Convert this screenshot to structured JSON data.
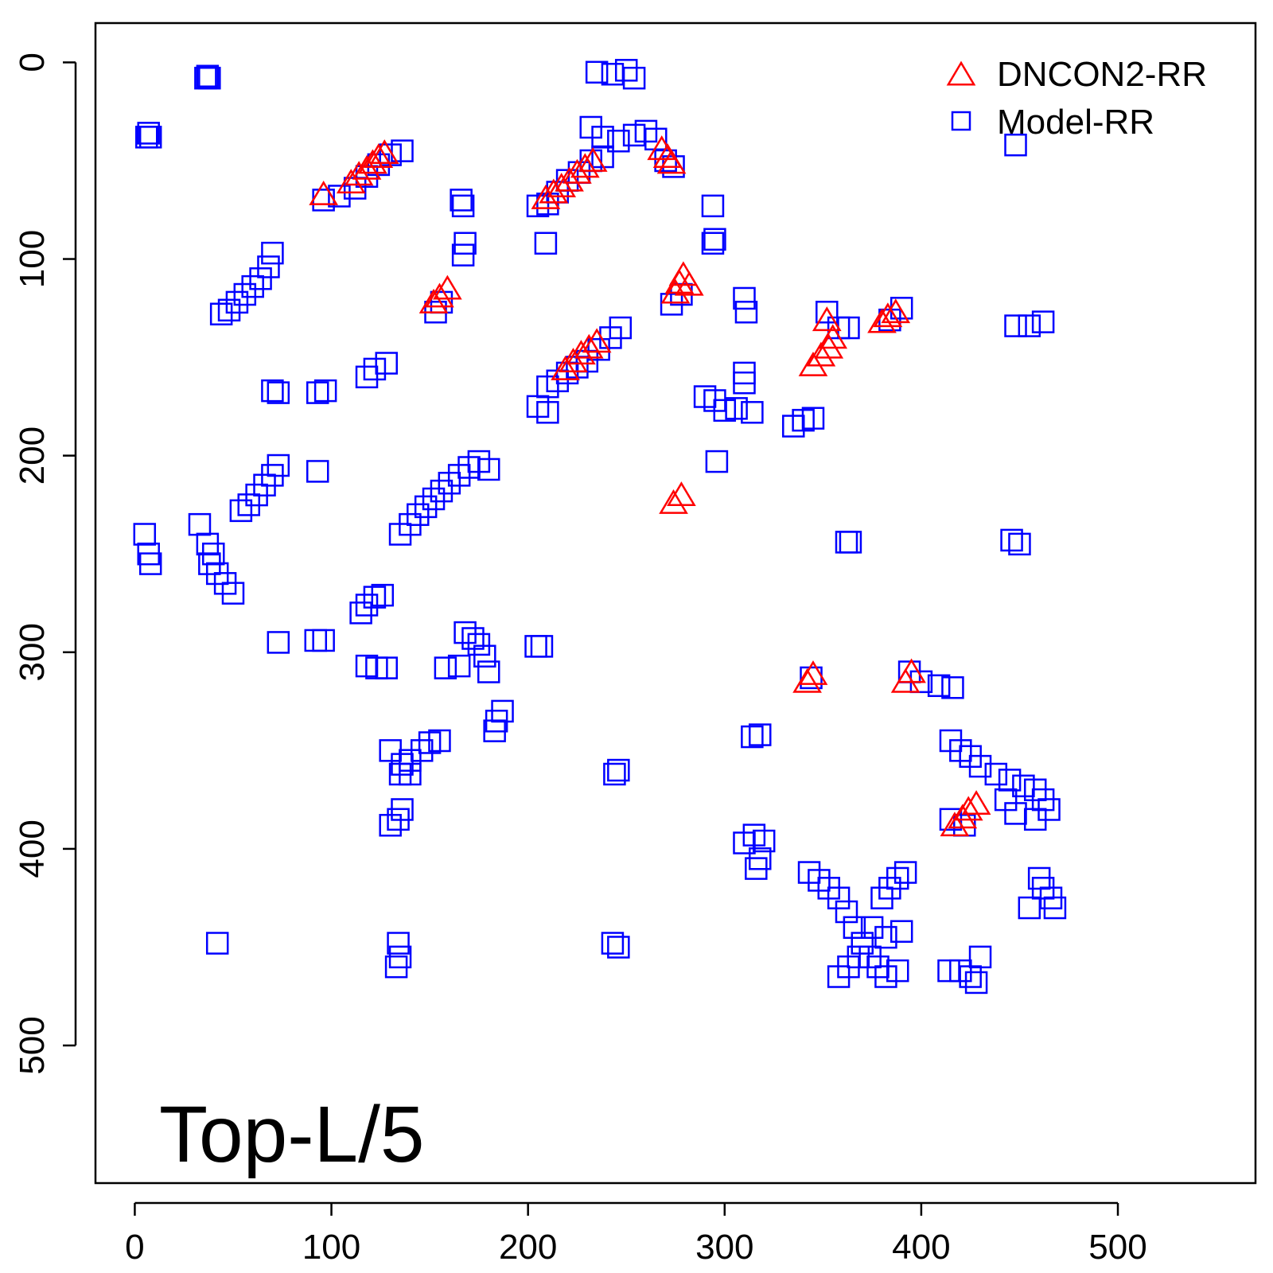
{
  "chart_data": {
    "type": "scatter",
    "title": "",
    "xlabel": "",
    "ylabel": "",
    "annotation": "Top-L/5",
    "xlim": [
      -20,
      570
    ],
    "ylim": [
      570,
      -20
    ],
    "y_reversed": true,
    "x_ticks": [
      0,
      100,
      200,
      300,
      400,
      500
    ],
    "y_ticks": [
      0,
      100,
      200,
      300,
      400,
      500
    ],
    "legend_position": "top-right",
    "grid": false,
    "series": [
      {
        "name": "DNCON2-RR",
        "marker": "open-triangle",
        "color": "#ff0000",
        "points": [
          [
            96,
            68
          ],
          [
            110,
            62
          ],
          [
            114,
            58
          ],
          [
            118,
            55
          ],
          [
            121,
            52
          ],
          [
            124,
            49
          ],
          [
            127,
            47
          ],
          [
            209,
            70
          ],
          [
            213,
            67
          ],
          [
            217,
            64
          ],
          [
            221,
            61
          ],
          [
            225,
            57
          ],
          [
            229,
            54
          ],
          [
            233,
            51
          ],
          [
            268,
            45
          ],
          [
            271,
            49
          ],
          [
            273,
            52
          ],
          [
            152,
            123
          ],
          [
            155,
            120
          ],
          [
            159,
            116
          ],
          [
            275,
            118
          ],
          [
            277,
            113
          ],
          [
            279,
            109
          ],
          [
            282,
            114
          ],
          [
            345,
            155
          ],
          [
            349,
            150
          ],
          [
            353,
            146
          ],
          [
            355,
            141
          ],
          [
            352,
            132
          ],
          [
            380,
            133
          ],
          [
            383,
            130
          ],
          [
            387,
            128
          ],
          [
            219,
            157
          ],
          [
            223,
            153
          ],
          [
            227,
            149
          ],
          [
            231,
            146
          ],
          [
            235,
            143
          ],
          [
            274,
            225
          ],
          [
            278,
            221
          ],
          [
            342,
            316
          ],
          [
            345,
            312
          ],
          [
            392,
            316
          ],
          [
            395,
            311
          ],
          [
            417,
            389
          ],
          [
            421,
            385
          ],
          [
            424,
            381
          ],
          [
            428,
            378
          ]
        ]
      },
      {
        "name": "Model-RR",
        "marker": "open-square",
        "color": "#0000ff",
        "points": [
          [
            36,
            8
          ],
          [
            38,
            8
          ],
          [
            37,
            7
          ],
          [
            6,
            38
          ],
          [
            8,
            38
          ],
          [
            7,
            36
          ],
          [
            96,
            70
          ],
          [
            104,
            68
          ],
          [
            112,
            64
          ],
          [
            118,
            58
          ],
          [
            124,
            52
          ],
          [
            130,
            47
          ],
          [
            136,
            45
          ],
          [
            235,
            5
          ],
          [
            243,
            6
          ],
          [
            250,
            4
          ],
          [
            254,
            8
          ],
          [
            232,
            33
          ],
          [
            238,
            38
          ],
          [
            246,
            40
          ],
          [
            254,
            37
          ],
          [
            260,
            35
          ],
          [
            265,
            39
          ],
          [
            205,
            73
          ],
          [
            210,
            72
          ],
          [
            215,
            66
          ],
          [
            220,
            60
          ],
          [
            226,
            56
          ],
          [
            232,
            50
          ],
          [
            238,
            48
          ],
          [
            270,
            50
          ],
          [
            274,
            53
          ],
          [
            166,
            70
          ],
          [
            167,
            73
          ],
          [
            168,
            92
          ],
          [
            167,
            98
          ],
          [
            209,
            92
          ],
          [
            294,
            73
          ],
          [
            294,
            92
          ],
          [
            295,
            90
          ],
          [
            44,
            128
          ],
          [
            48,
            126
          ],
          [
            52,
            122
          ],
          [
            56,
            118
          ],
          [
            60,
            114
          ],
          [
            64,
            110
          ],
          [
            68,
            104
          ],
          [
            70,
            97
          ],
          [
            153,
            127
          ],
          [
            156,
            122
          ],
          [
            273,
            123
          ],
          [
            278,
            118
          ],
          [
            310,
            120
          ],
          [
            311,
            127
          ],
          [
            352,
            127
          ],
          [
            358,
            135
          ],
          [
            363,
            135
          ],
          [
            384,
            131
          ],
          [
            390,
            125
          ],
          [
            448,
            134
          ],
          [
            455,
            134
          ],
          [
            462,
            132
          ],
          [
            448,
            42
          ],
          [
            118,
            160
          ],
          [
            122,
            156
          ],
          [
            128,
            153
          ],
          [
            70,
            167
          ],
          [
            73,
            168
          ],
          [
            93,
            168
          ],
          [
            97,
            167
          ],
          [
            210,
            165
          ],
          [
            215,
            162
          ],
          [
            220,
            158
          ],
          [
            225,
            155
          ],
          [
            230,
            152
          ],
          [
            236,
            146
          ],
          [
            242,
            140
          ],
          [
            247,
            135
          ],
          [
            205,
            175
          ],
          [
            210,
            178
          ],
          [
            290,
            170
          ],
          [
            295,
            172
          ],
          [
            300,
            177
          ],
          [
            306,
            176
          ],
          [
            310,
            158
          ],
          [
            310,
            163
          ],
          [
            314,
            178
          ],
          [
            335,
            185
          ],
          [
            340,
            182
          ],
          [
            345,
            181
          ],
          [
            93,
            208
          ],
          [
            73,
            205
          ],
          [
            70,
            210
          ],
          [
            66,
            215
          ],
          [
            62,
            220
          ],
          [
            58,
            225
          ],
          [
            54,
            228
          ],
          [
            135,
            240
          ],
          [
            140,
            235
          ],
          [
            144,
            230
          ],
          [
            148,
            226
          ],
          [
            152,
            222
          ],
          [
            156,
            218
          ],
          [
            160,
            214
          ],
          [
            165,
            210
          ],
          [
            170,
            206
          ],
          [
            175,
            203
          ],
          [
            180,
            207
          ],
          [
            296,
            203
          ],
          [
            5,
            240
          ],
          [
            7,
            250
          ],
          [
            8,
            255
          ],
          [
            33,
            235
          ],
          [
            37,
            245
          ],
          [
            40,
            250
          ],
          [
            42,
            260
          ],
          [
            46,
            265
          ],
          [
            50,
            270
          ],
          [
            38,
            255
          ],
          [
            362,
            244
          ],
          [
            364,
            244
          ],
          [
            446,
            243
          ],
          [
            450,
            245
          ],
          [
            115,
            280
          ],
          [
            118,
            276
          ],
          [
            122,
            272
          ],
          [
            126,
            271
          ],
          [
            73,
            295
          ],
          [
            92,
            294
          ],
          [
            96,
            294
          ],
          [
            168,
            290
          ],
          [
            172,
            293
          ],
          [
            175,
            296
          ],
          [
            178,
            302
          ],
          [
            180,
            310
          ],
          [
            165,
            307
          ],
          [
            158,
            308
          ],
          [
            204,
            297
          ],
          [
            207,
            297
          ],
          [
            118,
            307
          ],
          [
            123,
            308
          ],
          [
            128,
            308
          ],
          [
            184,
            335
          ],
          [
            187,
            330
          ],
          [
            183,
            340
          ],
          [
            344,
            313
          ],
          [
            394,
            310
          ],
          [
            400,
            315
          ],
          [
            409,
            317
          ],
          [
            416,
            318
          ],
          [
            130,
            350
          ],
          [
            136,
            357
          ],
          [
            140,
            355
          ],
          [
            146,
            350
          ],
          [
            150,
            346
          ],
          [
            155,
            345
          ],
          [
            135,
            362
          ],
          [
            140,
            362
          ],
          [
            314,
            343
          ],
          [
            318,
            342
          ],
          [
            244,
            362
          ],
          [
            246,
            360
          ],
          [
            415,
            345
          ],
          [
            420,
            350
          ],
          [
            425,
            353
          ],
          [
            430,
            358
          ],
          [
            438,
            362
          ],
          [
            445,
            365
          ],
          [
            452,
            368
          ],
          [
            458,
            370
          ],
          [
            462,
            375
          ],
          [
            465,
            380
          ],
          [
            458,
            385
          ],
          [
            448,
            382
          ],
          [
            443,
            375
          ],
          [
            130,
            388
          ],
          [
            134,
            385
          ],
          [
            136,
            380
          ],
          [
            310,
            397
          ],
          [
            315,
            393
          ],
          [
            320,
            396
          ],
          [
            316,
            410
          ],
          [
            318,
            405
          ],
          [
            415,
            385
          ],
          [
            422,
            388
          ],
          [
            343,
            412
          ],
          [
            348,
            416
          ],
          [
            353,
            420
          ],
          [
            358,
            425
          ],
          [
            362,
            432
          ],
          [
            366,
            440
          ],
          [
            370,
            448
          ],
          [
            374,
            455
          ],
          [
            378,
            460
          ],
          [
            382,
            465
          ],
          [
            388,
            462
          ],
          [
            380,
            425
          ],
          [
            384,
            420
          ],
          [
            388,
            415
          ],
          [
            392,
            412
          ],
          [
            363,
            460
          ],
          [
            358,
            465
          ],
          [
            368,
            455
          ],
          [
            375,
            440
          ],
          [
            382,
            445
          ],
          [
            390,
            442
          ],
          [
            460,
            415
          ],
          [
            462,
            420
          ],
          [
            466,
            425
          ],
          [
            468,
            430
          ],
          [
            455,
            430
          ],
          [
            42,
            448
          ],
          [
            134,
            448
          ],
          [
            135,
            455
          ],
          [
            133,
            460
          ],
          [
            243,
            448
          ],
          [
            246,
            450
          ],
          [
            414,
            462
          ],
          [
            420,
            462
          ],
          [
            425,
            465
          ],
          [
            428,
            468
          ],
          [
            430,
            455
          ]
        ]
      }
    ]
  }
}
